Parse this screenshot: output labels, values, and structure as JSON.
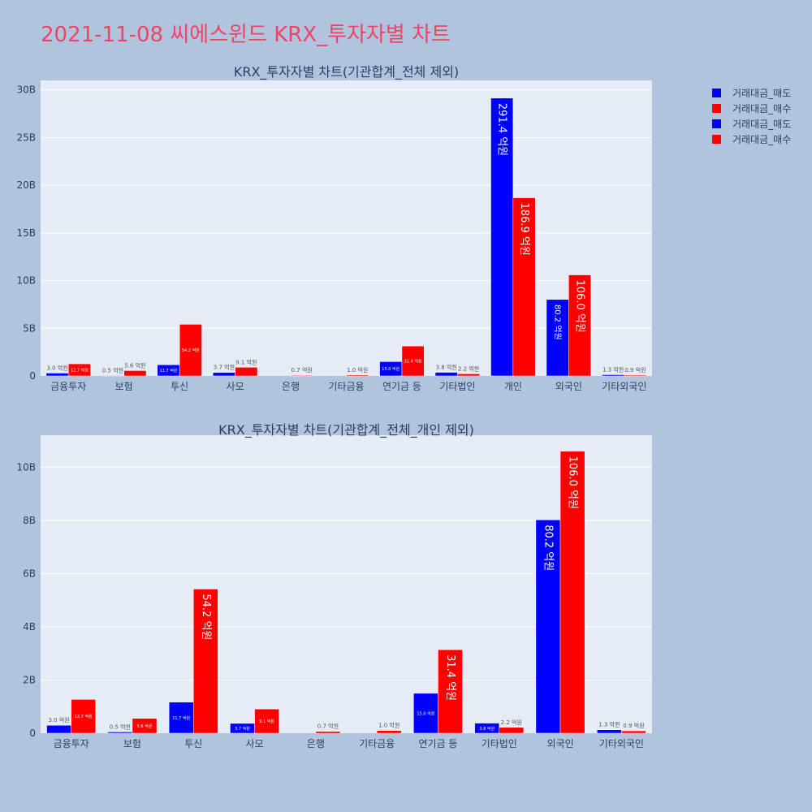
{
  "page_title": "2021-11-08 씨에스윈드 KRX_투자자별 차트",
  "legend": [
    {
      "label": "거래대금_매도",
      "color": "#0000ff"
    },
    {
      "label": "거래대금_매수",
      "color": "#ff0000"
    },
    {
      "label": "거래대금_매도",
      "color": "#0000ff"
    },
    {
      "label": "거래대금_매수",
      "color": "#ff0000"
    }
  ],
  "chart_data": [
    {
      "type": "bar",
      "title": "KRX_투자자별 차트(기관합계_전체 제외)",
      "categories": [
        "금융투자",
        "보험",
        "투신",
        "사모",
        "은행",
        "기타금융",
        "연기금 등",
        "기타법인",
        "개인",
        "외국인",
        "기타외국인"
      ],
      "ylim": [
        0,
        31000000000
      ],
      "yticks": [
        0,
        5000000000,
        10000000000,
        15000000000,
        20000000000,
        25000000000,
        30000000000
      ],
      "ytick_labels": [
        "0",
        "5B",
        "10B",
        "15B",
        "20B",
        "25B",
        "30B"
      ],
      "series": [
        {
          "name": "거래대금_매도",
          "color": "#0000ff",
          "values": [
            300000000,
            50000000,
            1170000000,
            370000000,
            0,
            0,
            1500000000,
            380000000,
            29140000000,
            8020000000,
            130000000
          ],
          "labels": [
            "3.0 억원",
            "0.5 억원",
            "11.7 억원",
            "3.7 억원",
            "",
            "",
            "15.0 억원",
            "3.8 억원",
            "291.4 억원",
            "80.2 억원",
            "1.3 억원"
          ]
        },
        {
          "name": "거래대금_매수",
          "color": "#ff0000",
          "values": [
            1270000000,
            560000000,
            5420000000,
            910000000,
            70000000,
            100000000,
            3140000000,
            220000000,
            18690000000,
            10600000000,
            90000000
          ],
          "labels": [
            "12.7 억원",
            "5.6 억원",
            "54.2 억원",
            "9.1 억원",
            "0.7 억원",
            "1.0 억원",
            "31.4 억원",
            "2.2 억원",
            "186.9 억원",
            "106.0 억원",
            "0.9 억원"
          ]
        }
      ]
    },
    {
      "type": "bar",
      "title": "KRX_투자자별 차트(기관합계_전체_개인 제외)",
      "categories": [
        "금융투자",
        "보험",
        "투신",
        "사모",
        "은행",
        "기타금융",
        "연기금 등",
        "기타법인",
        "외국인",
        "기타외국인"
      ],
      "ylim": [
        0,
        11200000000
      ],
      "yticks": [
        0,
        2000000000,
        4000000000,
        6000000000,
        8000000000,
        10000000000
      ],
      "ytick_labels": [
        "0",
        "2B",
        "4B",
        "6B",
        "8B",
        "10B"
      ],
      "series": [
        {
          "name": "거래대금_매도",
          "color": "#0000ff",
          "values": [
            300000000,
            50000000,
            1170000000,
            370000000,
            0,
            0,
            1500000000,
            380000000,
            8020000000,
            130000000
          ],
          "labels": [
            "3.0 억원",
            "0.5 억원",
            "11.7 억원",
            "3.7 억원",
            "",
            "",
            "15.0 억원",
            "3.8 억원",
            "80.2 억원",
            "1.3 억원"
          ]
        },
        {
          "name": "거래대금_매수",
          "color": "#ff0000",
          "values": [
            1270000000,
            560000000,
            5420000000,
            910000000,
            70000000,
            100000000,
            3140000000,
            220000000,
            10600000000,
            90000000
          ],
          "labels": [
            "12.7 억원",
            "5.6 억원",
            "54.2 억원",
            "9.1 억원",
            "0.7 억원",
            "1.0 억원",
            "31.4 억원",
            "2.2 억원",
            "106.0 억원",
            "0.9 억원"
          ]
        }
      ]
    }
  ]
}
